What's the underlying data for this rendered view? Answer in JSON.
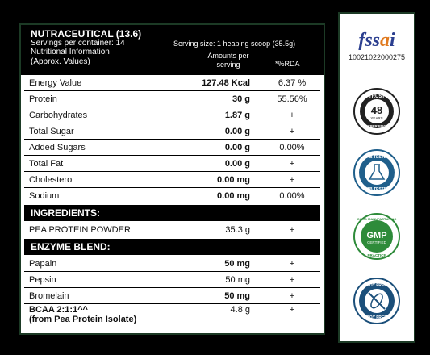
{
  "header": {
    "title": "NUTRACEUTICAL (13.6)",
    "servings": "Servings per container: 14",
    "info1": "Nutritional Information",
    "info2": "(Approx. Values)",
    "serving_size": "Serving size: 1 heaping scoop (35.5g)",
    "amounts_per_line1": "Amounts per",
    "amounts_per_line2": "serving",
    "rda": "*%RDA"
  },
  "nutrients": [
    {
      "name": "Energy Value",
      "value": "127.48 Kcal",
      "rda": "6.37 %"
    },
    {
      "name": "Protein",
      "value": "30 g",
      "rda": "55.56%"
    },
    {
      "name": "Carbohydrates",
      "value": "1.87 g",
      "rda": "+"
    },
    {
      "name": "Total Sugar",
      "value": "0.00 g",
      "rda": "+"
    },
    {
      "name": "Added Sugars",
      "value": "0.00 g",
      "rda": "0.00%"
    },
    {
      "name": "Total Fat",
      "value": "0.00 g",
      "rda": "+"
    },
    {
      "name": "Cholesterol",
      "value": "0.00 mg",
      "rda": "+"
    },
    {
      "name": "Sodium",
      "value": "0.00 mg",
      "rda": "0.00%"
    }
  ],
  "ingredients": {
    "heading": "INGREDIENTS:",
    "items": [
      {
        "name": "PEA PROTEIN POWDER",
        "value": "35.3 g",
        "rda": "+"
      }
    ]
  },
  "enzyme_blend": {
    "heading": "ENZYME BLEND:",
    "items": [
      {
        "name": "Papain",
        "value": "50 mg",
        "rda": "+"
      },
      {
        "name": "Pepsin",
        "value": "50 mg",
        "rda": "+"
      },
      {
        "name": "Bromelain",
        "value": "50 mg",
        "rda": "+"
      }
    ]
  },
  "bcaa": {
    "name_line1": "BCAA 2:1:1^^",
    "name_line2": "(from Pea Protein Isolate)",
    "value": "4.8 g",
    "rda": "+"
  },
  "certifications": {
    "fssai_logo": "fssai",
    "fssai_number": "10021022000275",
    "trust": {
      "top": "TRUST",
      "number": "48",
      "unit": "YEARS",
      "bottom": "EXPERIENCE"
    },
    "lab": {
      "top": "LAB TESTED",
      "bottom": "LAB TESTED"
    },
    "gmp": {
      "top": "GOOD MANUFACTURING",
      "center": "GMP",
      "sub": "CERTIFIED",
      "bottom": "PRACTICE"
    },
    "soy": {
      "top": "SOY FREE",
      "bottom": "SOY FREE"
    }
  },
  "colors": {
    "panel_border": "#1c3a25",
    "lab_blue": "#1f5f8b",
    "gmp_green": "#2e8b3a",
    "soy_blue": "#1b4f7a"
  }
}
